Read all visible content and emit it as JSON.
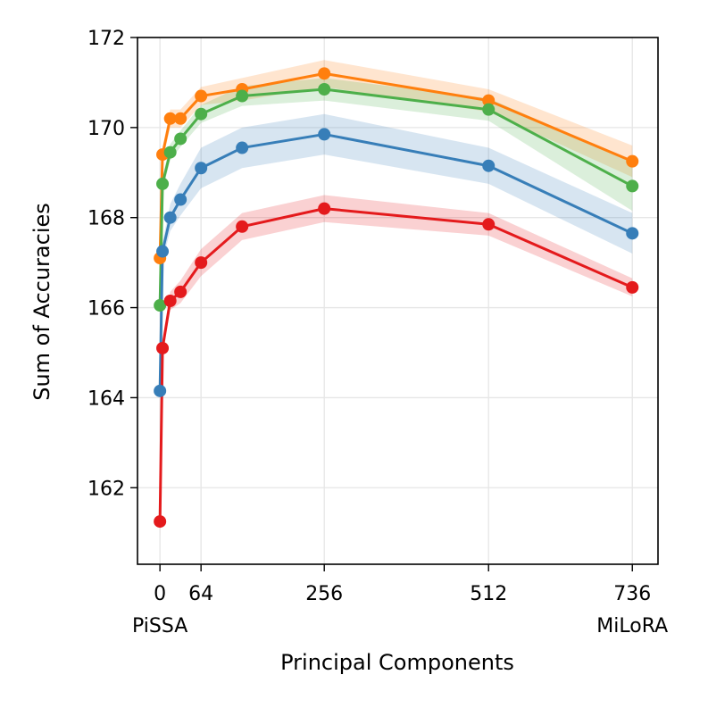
{
  "chart_data": {
    "type": "line",
    "title": "",
    "xlabel": "Principal Components",
    "ylabel": "Sum of Accuracies",
    "xlim": [
      -35,
      776
    ],
    "ylim": [
      160.3,
      172
    ],
    "grid": true,
    "x_ticks": [
      {
        "value": 0,
        "label": "0",
        "sublabel": "PiSSA"
      },
      {
        "value": 64,
        "label": "64",
        "sublabel": ""
      },
      {
        "value": 256,
        "label": "256",
        "sublabel": ""
      },
      {
        "value": 512,
        "label": "512",
        "sublabel": ""
      },
      {
        "value": 736,
        "label": "736",
        "sublabel": "MiLoRA"
      }
    ],
    "y_ticks": [
      {
        "value": 162,
        "label": "162"
      },
      {
        "value": 164,
        "label": "164"
      },
      {
        "value": 166,
        "label": "166"
      },
      {
        "value": 168,
        "label": "168"
      },
      {
        "value": 170,
        "label": "170"
      },
      {
        "value": 172,
        "label": "172"
      }
    ],
    "series": [
      {
        "name": "orange",
        "color": "#ff7f0e",
        "x": [
          0,
          4,
          16,
          32,
          64,
          128,
          256,
          512,
          736
        ],
        "y": [
          167.1,
          169.4,
          170.2,
          170.2,
          170.7,
          170.85,
          171.2,
          170.6,
          169.25
        ],
        "band": [
          0.12,
          0.15,
          0.2,
          0.2,
          0.2,
          0.25,
          0.3,
          0.25,
          0.35
        ]
      },
      {
        "name": "green",
        "color": "#4daf4a",
        "x": [
          0,
          4,
          16,
          32,
          64,
          128,
          256,
          512,
          736
        ],
        "y": [
          166.05,
          168.75,
          169.45,
          169.75,
          170.3,
          170.7,
          170.85,
          170.4,
          168.7
        ],
        "band": [
          0.12,
          0.15,
          0.18,
          0.18,
          0.2,
          0.22,
          0.25,
          0.25,
          0.55
        ]
      },
      {
        "name": "blue",
        "color": "#377eb8",
        "x": [
          0,
          4,
          16,
          32,
          64,
          128,
          256,
          512,
          736
        ],
        "y": [
          164.15,
          167.25,
          168.0,
          168.4,
          169.1,
          169.55,
          169.85,
          169.15,
          167.65
        ],
        "band": [
          0.15,
          0.2,
          0.3,
          0.35,
          0.45,
          0.45,
          0.45,
          0.4,
          0.45
        ]
      },
      {
        "name": "red",
        "color": "#e41a1c",
        "x": [
          0,
          4,
          16,
          32,
          64,
          128,
          256,
          512,
          736
        ],
        "y": [
          161.25,
          165.1,
          166.15,
          166.35,
          167.0,
          167.8,
          168.2,
          167.85,
          166.45
        ],
        "band": [
          0.35,
          0.2,
          0.2,
          0.25,
          0.3,
          0.3,
          0.3,
          0.25,
          0.2
        ]
      }
    ]
  }
}
